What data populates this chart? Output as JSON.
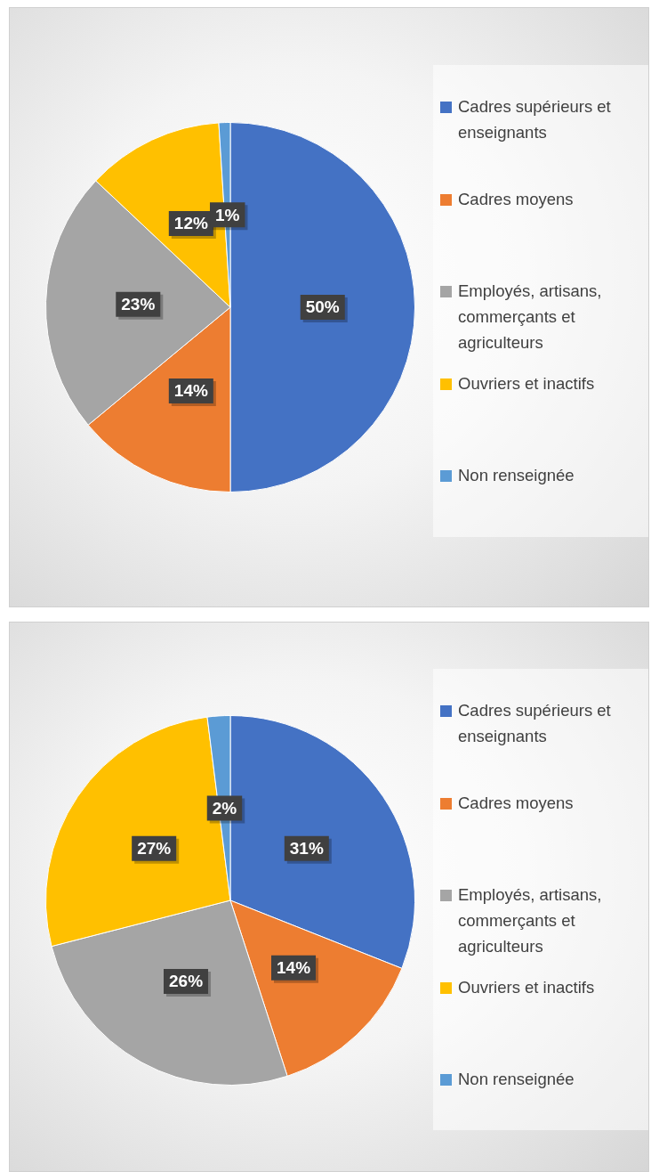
{
  "chart_data": [
    {
      "type": "pie",
      "categories": [
        "Cadres supérieurs et enseignants",
        "Cadres moyens",
        "Employés, artisans, commerçants et agriculteurs",
        "Ouvriers et inactifs",
        "Non renseignée"
      ],
      "values": [
        50,
        14,
        23,
        12,
        1
      ],
      "value_labels": [
        "50%",
        "14%",
        "23%",
        "12%",
        "1%"
      ],
      "colors": [
        "#4472c4",
        "#ed7d31",
        "#a5a5a5",
        "#ffc000",
        "#5b9bd5"
      ],
      "legend": "right"
    },
    {
      "type": "pie",
      "categories": [
        "Cadres supérieurs et enseignants",
        "Cadres moyens",
        "Employés, artisans, commerçants et agriculteurs",
        "Ouvriers et inactifs",
        "Non renseignée"
      ],
      "values": [
        31,
        14,
        26,
        27,
        2
      ],
      "value_labels": [
        "31%",
        "14%",
        "26%",
        "27%",
        "2%"
      ],
      "colors": [
        "#4472c4",
        "#ed7d31",
        "#a5a5a5",
        "#ffc000",
        "#5b9bd5"
      ],
      "legend": "right"
    }
  ]
}
